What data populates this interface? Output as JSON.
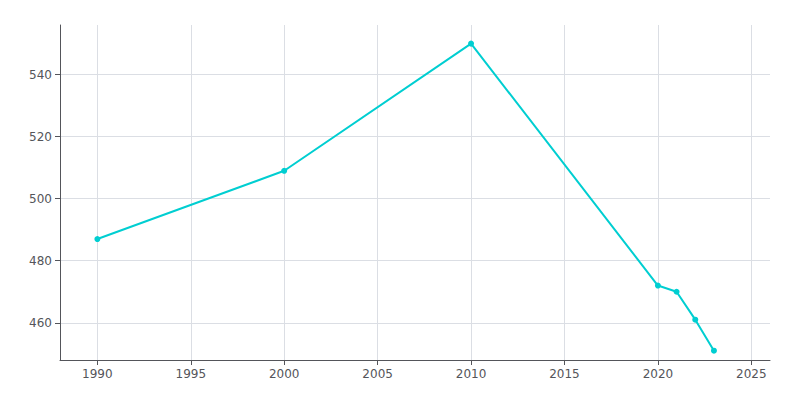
{
  "chart_data": {
    "type": "line",
    "x": [
      1990,
      2000,
      2010,
      2020,
      2021,
      2022,
      2023
    ],
    "values": [
      487,
      509,
      550,
      472,
      470,
      461,
      451
    ],
    "color": "#00CED1",
    "marker": "circle",
    "xlim": [
      1988,
      2026
    ],
    "ylim": [
      448,
      556
    ],
    "xticks": [
      1990,
      1995,
      2000,
      2005,
      2010,
      2015,
      2020,
      2025
    ],
    "yticks": [
      460,
      480,
      500,
      520,
      540
    ],
    "grid": true
  }
}
